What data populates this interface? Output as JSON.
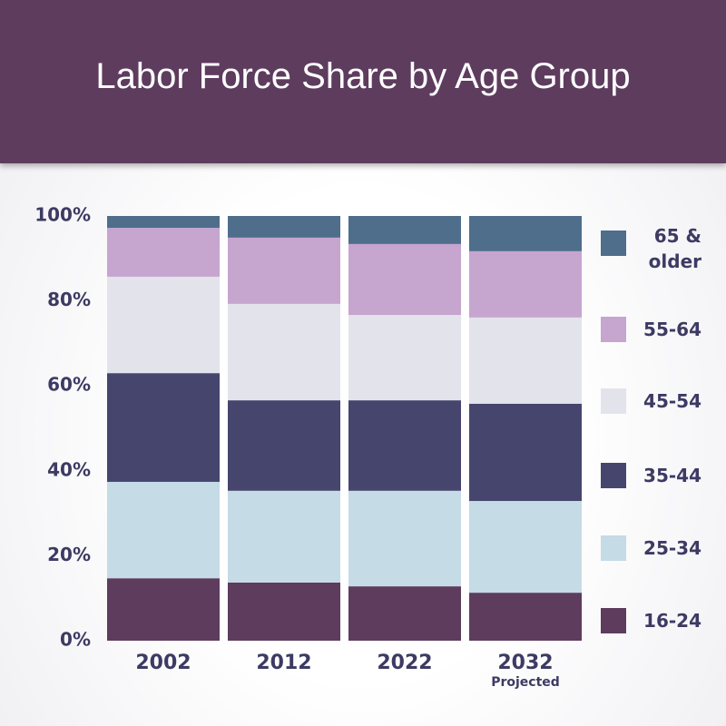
{
  "chart_data": {
    "type": "stacked-bar",
    "title": "Labor Force Share by Age Group",
    "categories": [
      "2002",
      "2012",
      "2022",
      "2032"
    ],
    "annotations": [
      "Projected"
    ],
    "ylim": [
      0,
      100
    ],
    "yticks": [
      {
        "value": 0,
        "label": "0%"
      },
      {
        "value": 20,
        "label": "20%"
      },
      {
        "value": 40,
        "label": "40%"
      },
      {
        "value": 60,
        "label": "60%"
      },
      {
        "value": 80,
        "label": "80%"
      },
      {
        "value": 100,
        "label": "100%"
      }
    ],
    "grid": false,
    "legend": "right",
    "series": [
      {
        "name": "16-24",
        "color": "#5e3c5e",
        "values": [
          14.7,
          13.7,
          12.8,
          11.3
        ]
      },
      {
        "name": "25-34",
        "color": "#c5dbe6",
        "values": [
          22.7,
          21.6,
          22.5,
          21.6
        ]
      },
      {
        "name": "35-44",
        "color": "#45456e",
        "values": [
          25.6,
          21.3,
          21.3,
          22.9
        ]
      },
      {
        "name": "45-54",
        "color": "#e3e3ec",
        "values": [
          22.7,
          22.7,
          20.1,
          20.3
        ]
      },
      {
        "name": "55-64",
        "color": "#c6a5cf",
        "values": [
          11.5,
          15.6,
          16.7,
          15.6
        ]
      },
      {
        "name": "65 & older",
        "color": "#4e6e8c",
        "values": [
          2.8,
          5.1,
          6.6,
          8.3
        ]
      }
    ]
  }
}
